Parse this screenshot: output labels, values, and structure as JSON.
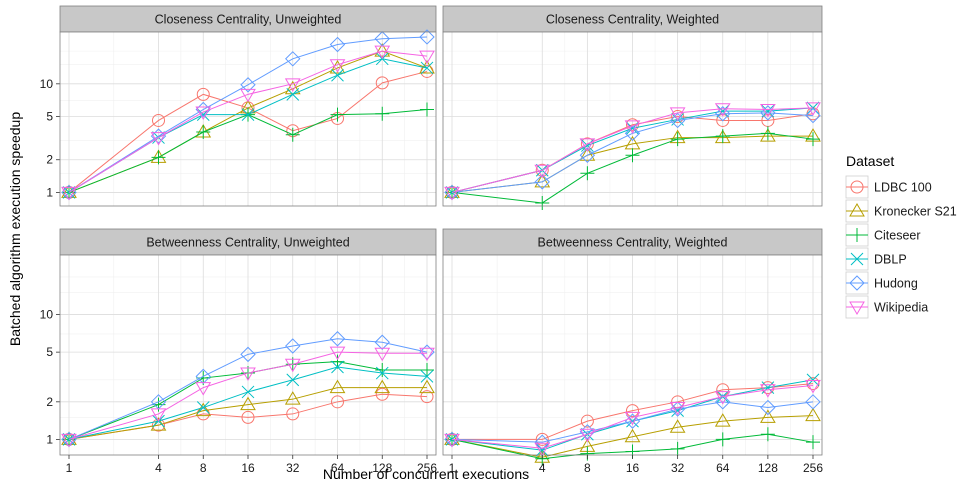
{
  "chart_data": {
    "type": "line",
    "xlabel": "Number of concurrent executions",
    "ylabel": "Batched algorithm execution speedup",
    "x": [
      1,
      4,
      8,
      16,
      32,
      64,
      128,
      256
    ],
    "x_tick_labels": [
      "1",
      "4",
      "8",
      "16",
      "32",
      "64",
      "128",
      "256"
    ],
    "y_ticks": [
      1,
      2,
      5,
      10
    ],
    "y_tick_labels": [
      "1",
      "2",
      "5",
      "10"
    ],
    "x_scale": "log2",
    "y_scale": "log",
    "ylim": [
      0.75,
      30
    ],
    "legend": {
      "title": "Dataset",
      "placement": "right",
      "entries": [
        {
          "name": "LDBC 100",
          "color": "#F8766D",
          "marker": "circle"
        },
        {
          "name": "Kronecker S21",
          "color": "#B79F00",
          "marker": "triangle"
        },
        {
          "name": "Citeseer",
          "color": "#00BA38",
          "marker": "plus"
        },
        {
          "name": "DBLP",
          "color": "#00BFC4",
          "marker": "cross"
        },
        {
          "name": "Hudong",
          "color": "#619CFF",
          "marker": "diamond"
        },
        {
          "name": "Wikipedia",
          "color": "#F564E3",
          "marker": "triangle-down"
        }
      ]
    },
    "panels": [
      {
        "title": "Closeness Centrality, Unweighted",
        "series": [
          {
            "name": "LDBC 100",
            "values": [
              1,
              4.6,
              8,
              6,
              3.7,
              4.8,
              10.2,
              13
            ]
          },
          {
            "name": "Kronecker S21",
            "values": [
              1,
              2.1,
              3.6,
              6,
              9,
              14,
              20,
              14
            ]
          },
          {
            "name": "Citeseer",
            "values": [
              1,
              2.1,
              3.6,
              5.2,
              3.4,
              5.2,
              5.3,
              5.8
            ]
          },
          {
            "name": "DBLP",
            "values": [
              1,
              3.2,
              5.2,
              5.2,
              8,
              12,
              17,
              14
            ]
          },
          {
            "name": "Hudong",
            "values": [
              1,
              3.3,
              5.8,
              9.8,
              17,
              23,
              26,
              27
            ]
          },
          {
            "name": "Wikipedia",
            "values": [
              1,
              3.2,
              5.5,
              8,
              10,
              15,
              20,
              18
            ]
          }
        ]
      },
      {
        "title": "Closeness Centrality, Weighted",
        "series": [
          {
            "name": "LDBC 100",
            "values": [
              1,
              1.6,
              2.8,
              4.2,
              5,
              4.6,
              4.6,
              5.3
            ]
          },
          {
            "name": "Kronecker S21",
            "values": [
              1,
              1.25,
              2.2,
              2.8,
              3.2,
              3.2,
              3.3,
              3.3
            ]
          },
          {
            "name": "Citeseer",
            "values": [
              1,
              0.8,
              1.5,
              2.2,
              3.1,
              3.3,
              3.5,
              3.1
            ]
          },
          {
            "name": "DBLP",
            "values": [
              1,
              1.6,
              2.7,
              3.9,
              4.7,
              5.6,
              5.6,
              6
            ]
          },
          {
            "name": "Hudong",
            "values": [
              1,
              1.25,
              2.2,
              3.5,
              4.6,
              5.3,
              5.4,
              5.1
            ]
          },
          {
            "name": "Wikipedia",
            "values": [
              1,
              1.6,
              2.8,
              4.1,
              5.4,
              5.9,
              5.8,
              6
            ]
          }
        ]
      },
      {
        "title": "Betweenness Centrality, Unweighted",
        "series": [
          {
            "name": "LDBC 100",
            "values": [
              1,
              1.3,
              1.6,
              1.5,
              1.6,
              2,
              2.3,
              2.2
            ]
          },
          {
            "name": "Kronecker S21",
            "values": [
              1,
              1.3,
              1.7,
              1.9,
              2.1,
              2.6,
              2.6,
              2.6
            ]
          },
          {
            "name": "Citeseer",
            "values": [
              1,
              1.9,
              3.1,
              3.4,
              4,
              4.2,
              3.6,
              3.6
            ]
          },
          {
            "name": "DBLP",
            "values": [
              1,
              1.4,
              1.8,
              2.4,
              3,
              3.8,
              3.4,
              3.2
            ]
          },
          {
            "name": "Hudong",
            "values": [
              1,
              2,
              3.2,
              4.8,
              5.6,
              6.4,
              6,
              5
            ]
          },
          {
            "name": "Wikipedia",
            "values": [
              1,
              1.6,
              2.6,
              3.4,
              4,
              5,
              4.9,
              4.9
            ]
          }
        ]
      },
      {
        "title": "Betweenness Centrality, Weighted",
        "series": [
          {
            "name": "LDBC 100",
            "values": [
              1,
              1,
              1.4,
              1.7,
              2,
              2.5,
              2.6,
              2.8
            ]
          },
          {
            "name": "Kronecker S21",
            "values": [
              1,
              0.72,
              0.88,
              1.05,
              1.25,
              1.4,
              1.5,
              1.55
            ]
          },
          {
            "name": "Citeseer",
            "values": [
              1,
              0.7,
              0.77,
              0.8,
              0.84,
              1,
              1.1,
              0.95
            ]
          },
          {
            "name": "DBLP",
            "values": [
              1,
              0.82,
              1.1,
              1.4,
              1.7,
              2.2,
              2.6,
              3
            ]
          },
          {
            "name": "Hudong",
            "values": [
              1,
              0.95,
              1.15,
              1.4,
              1.75,
              2,
              1.8,
              2
            ]
          },
          {
            "name": "Wikipedia",
            "values": [
              1,
              0.85,
              1.1,
              1.5,
              1.8,
              2.2,
              2.5,
              2.7
            ]
          }
        ]
      }
    ]
  }
}
